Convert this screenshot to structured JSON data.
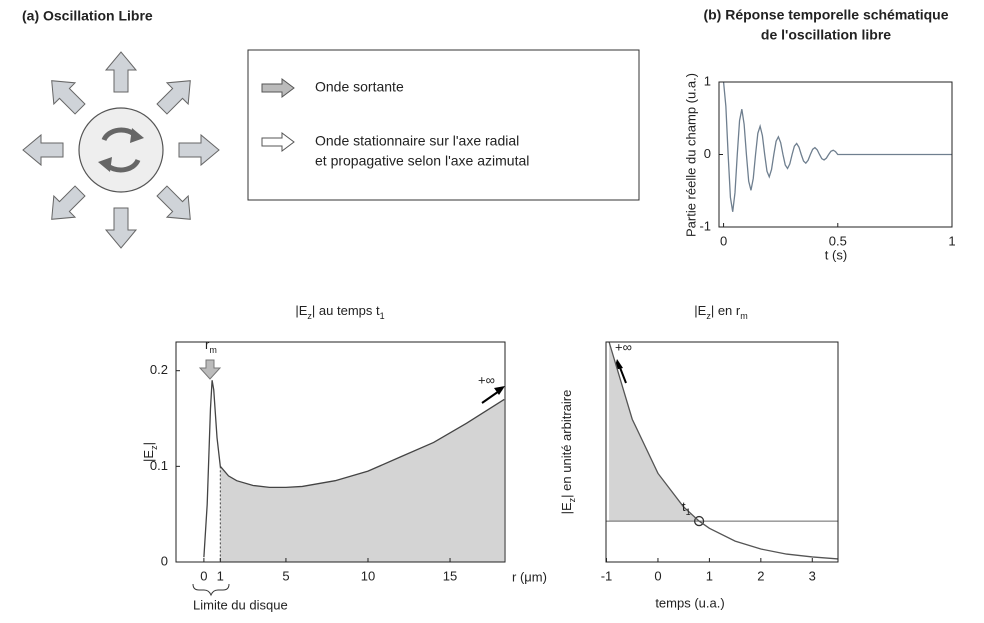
{
  "panel_a": {
    "title": "(a) Oscillation Libre",
    "legend": {
      "outgoing": "Onde sortante",
      "standing": [
        "Onde stationnaire sur l'axe radial",
        "et propagative selon l'axe azimutal"
      ]
    }
  },
  "chart_data": [
    {
      "type": "line",
      "title": [
        "(b) Réponse temporelle schématique",
        "de l'oscillation libre"
      ],
      "x_label": "t (s)",
      "y_label": "Partie réelle du champ (u.a.)",
      "x": [
        0,
        0.01,
        0.02,
        0.03,
        0.04,
        0.05,
        0.06,
        0.07,
        0.08,
        0.09,
        0.1,
        0.11,
        0.12,
        0.13,
        0.14,
        0.15,
        0.16,
        0.17,
        0.18,
        0.19,
        0.2,
        0.21,
        0.22,
        0.23,
        0.24,
        0.25,
        0.26,
        0.27,
        0.28,
        0.29,
        0.3,
        0.31,
        0.32,
        0.33,
        0.34,
        0.35,
        0.36,
        0.37,
        0.38,
        0.39,
        0.4,
        0.41,
        0.42,
        0.43,
        0.44,
        0.45,
        0.46,
        0.47,
        0.48,
        0.49,
        0.5,
        0.6,
        0.7,
        0.8,
        0.9,
        1
      ],
      "series": [
        {
          "color": "#6f7f8f",
          "values": [
            1,
            0.667,
            0,
            -0.592,
            -0.79,
            -0.527,
            0,
            0.468,
            0.625,
            0.416,
            0,
            -0.37,
            -0.494,
            -0.329,
            0,
            0.293,
            0.39,
            0.26,
            0,
            -0.231,
            -0.308,
            -0.206,
            0,
            0.183,
            0.244,
            0.163,
            0,
            -0.144,
            -0.193,
            -0.129,
            0,
            0.114,
            0.152,
            0.102,
            0,
            -0.09,
            -0.12,
            -0.08,
            0,
            0.071,
            0.095,
            0.064,
            0,
            -0.057,
            -0.075,
            -0.05,
            0,
            0.045,
            0.059,
            0.04,
            0,
            0,
            0,
            0,
            0,
            0
          ]
        }
      ],
      "xlim": [
        -0.02,
        1
      ],
      "ylim": [
        -1,
        1
      ],
      "xticks": [
        0,
        0.5,
        1
      ],
      "yticks": [
        -1,
        0,
        1
      ]
    },
    {
      "type": "area",
      "title": [
        "|E",
        "z",
        "| au temps t",
        "1"
      ],
      "x_label": "r (μm)",
      "y_label": [
        "|E",
        "z",
        "|"
      ],
      "x": [
        0,
        0.2,
        0.4,
        0.5,
        0.6,
        0.8,
        1,
        1.5,
        2,
        3,
        4,
        5,
        6,
        8,
        10,
        12,
        14,
        16,
        18.3
      ],
      "series": [
        {
          "color": "#444444",
          "values": [
            0.005,
            0.06,
            0.16,
            0.19,
            0.18,
            0.13,
            0.1,
            0.09,
            0.085,
            0.08,
            0.078,
            0.078,
            0.079,
            0.085,
            0.095,
            0.11,
            0.125,
            0.145,
            0.17
          ]
        }
      ],
      "shade_from": 1,
      "shade_color": "#d4d4d4",
      "xlim": [
        -1.7,
        18.35
      ],
      "ylim": [
        0,
        0.23
      ],
      "xticks": [
        0,
        1,
        5,
        10,
        15
      ],
      "yticks": [
        0,
        0.1,
        0.2
      ],
      "marker_label": [
        "r",
        "m"
      ],
      "infinity": "+∞",
      "disk_limit": "Limite du disque"
    },
    {
      "type": "area",
      "title": [
        "|E",
        "z",
        "| en r",
        "m"
      ],
      "x_label": "temps (u.a.)",
      "y_label": [
        "|E",
        "z",
        "| en unité arbitraire"
      ],
      "x": [
        -0.95,
        -0.5,
        0,
        0.5,
        0.8,
        1,
        1.5,
        2,
        2.5,
        3,
        3.5
      ],
      "series": [
        {
          "color": "#555555",
          "values": [
            1,
            0.649,
            0.403,
            0.25,
            0.186,
            0.153,
            0.095,
            0.059,
            0.036,
            0.023,
            0.014
          ]
        }
      ],
      "level": 0.186,
      "marker_x": 0.8,
      "shade_color": "#d4d4d4",
      "xlim": [
        -1.01,
        3.5
      ],
      "ylim": [
        0,
        1
      ],
      "xticks": [
        -1,
        0,
        1,
        2,
        3
      ],
      "marker_label": [
        "t",
        "1"
      ],
      "infinity": "+∞"
    }
  ]
}
